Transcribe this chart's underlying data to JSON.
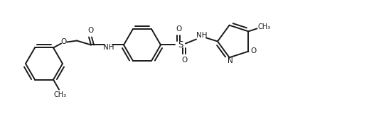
{
  "bg_color": "#ffffff",
  "line_color": "#1a1a1a",
  "line_width": 1.4,
  "fig_width": 5.26,
  "fig_height": 1.88,
  "dpi": 100,
  "xlim": [
    0,
    526
  ],
  "ylim": [
    0,
    188
  ],
  "ring_r": 26,
  "font_size": 7.5
}
